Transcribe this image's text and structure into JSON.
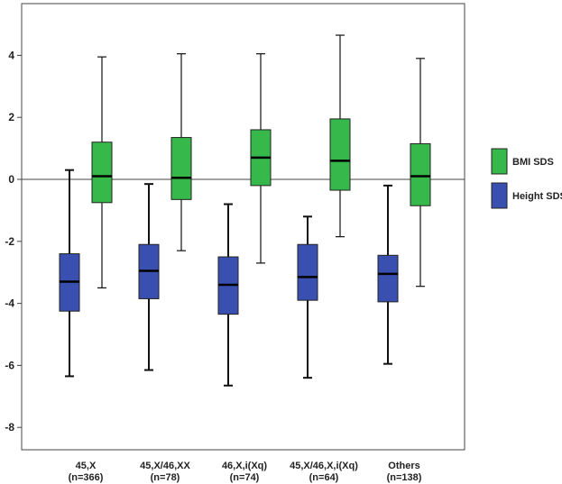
{
  "chart_data": {
    "type": "boxplot",
    "title": "",
    "xlabel": "",
    "ylabel": "",
    "ylim": [
      -9,
      5.5
    ],
    "yticks": [
      4,
      2,
      0,
      -2,
      -4,
      -6,
      -8
    ],
    "reference_line_y": 0,
    "grid": false,
    "legend_position": "right",
    "categories": [
      {
        "line1": "45,X",
        "line2": "(n=366)"
      },
      {
        "line1": "45,X/46,XX",
        "line2": "(n=78)"
      },
      {
        "line1": "46,X,i(Xq)",
        "line2": "(n=74)"
      },
      {
        "line1": "45,X/46,X,i(Xq)",
        "line2": "(n=64)"
      },
      {
        "line1": "Others",
        "line2": "(n=138)"
      }
    ],
    "series": [
      {
        "name": "Height SDS",
        "color": "#3a50b0",
        "boxes": [
          {
            "whisker_low": -6.35,
            "q1": -4.25,
            "median": -3.3,
            "q3": -2.4,
            "whisker_high": 0.3
          },
          {
            "whisker_low": -6.15,
            "q1": -3.85,
            "median": -2.95,
            "q3": -2.1,
            "whisker_high": -0.15
          },
          {
            "whisker_low": -6.65,
            "q1": -4.35,
            "median": -3.4,
            "q3": -2.5,
            "whisker_high": -0.8
          },
          {
            "whisker_low": -6.4,
            "q1": -3.9,
            "median": -3.15,
            "q3": -2.1,
            "whisker_high": -1.2
          },
          {
            "whisker_low": -5.95,
            "q1": -3.95,
            "median": -3.05,
            "q3": -2.45,
            "whisker_high": -0.2
          }
        ]
      },
      {
        "name": "BMI SDS",
        "color": "#36b84a",
        "boxes": [
          {
            "whisker_low": -3.5,
            "q1": -0.75,
            "median": 0.1,
            "q3": 1.2,
            "whisker_high": 3.95
          },
          {
            "whisker_low": -2.3,
            "q1": -0.65,
            "median": 0.05,
            "q3": 1.35,
            "whisker_high": 4.05
          },
          {
            "whisker_low": -2.7,
            "q1": -0.2,
            "median": 0.7,
            "q3": 1.6,
            "whisker_high": 4.05
          },
          {
            "whisker_low": -1.85,
            "q1": -0.35,
            "median": 0.6,
            "q3": 1.95,
            "whisker_high": 4.65
          },
          {
            "whisker_low": -3.45,
            "q1": -0.85,
            "median": 0.1,
            "q3": 1.15,
            "whisker_high": 3.9
          }
        ]
      }
    ],
    "legend": [
      {
        "label": "BMI SDS",
        "color": "#36b84a"
      },
      {
        "label": "Height SDS",
        "color": "#3a50b0"
      }
    ]
  }
}
